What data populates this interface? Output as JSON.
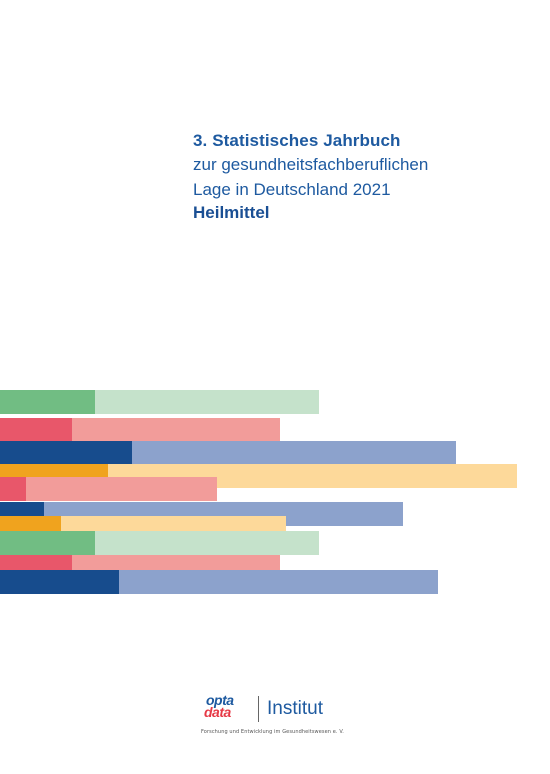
{
  "title": {
    "line1": "3. Statistisches Jahrbuch",
    "line2": "zur gesundheitsfachberuflichen",
    "line3": "Lage in Deutschland 2021",
    "line4": "Heilmittel"
  },
  "logo": {
    "brand_top": "opta",
    "brand_bottom": "data",
    "name": "Institut",
    "subtitle": "Forschung und Entwicklung im Gesundheitswesen e. V."
  },
  "colors": {
    "title_blue": "#1e5aa0",
    "green_dark": "#71bd83",
    "green_light": "#c5e2cb",
    "red_dark": "#e8576a",
    "red_light": "#f29c9a",
    "blue_dark": "#174c8d",
    "blue_light": "#8ca2cc",
    "orange_dark": "#f0a31e",
    "orange_light": "#fdd99a"
  }
}
